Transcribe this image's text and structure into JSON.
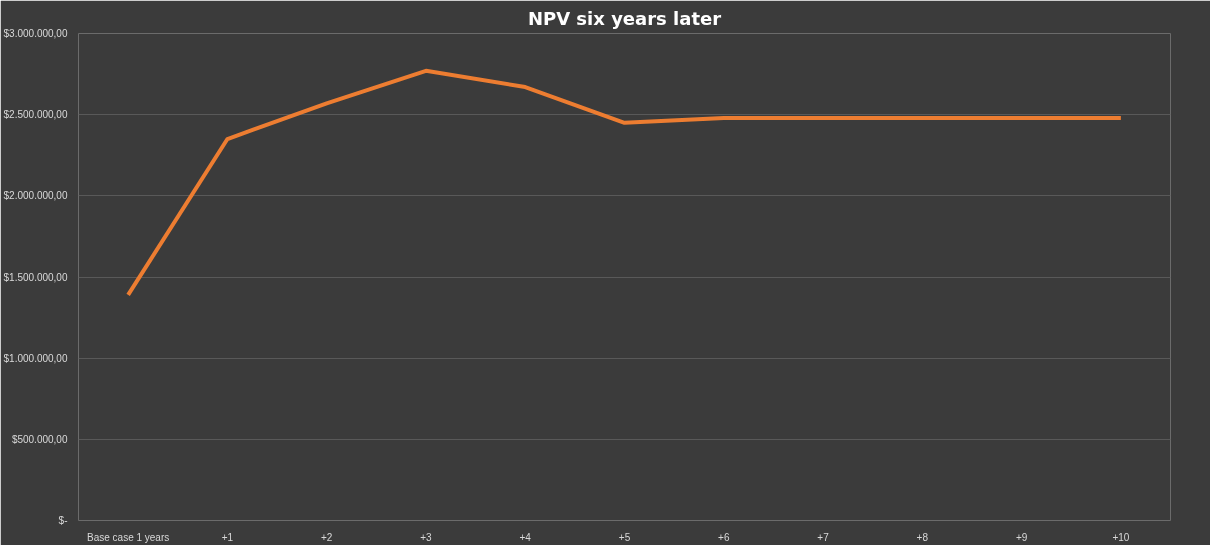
{
  "chart_data": {
    "type": "line",
    "title": "NPV six years later",
    "categories": [
      "Base case 1 years",
      "+1",
      "+2",
      "+3",
      "+4",
      "+5",
      "+6",
      "+7",
      "+8",
      "+9",
      "+10"
    ],
    "series": [
      {
        "color": "#ed7d31",
        "values": [
          1390000,
          2350000,
          2570000,
          2770000,
          2670000,
          2450000,
          2480000,
          2480000,
          2480000,
          2480000,
          2480000
        ]
      }
    ],
    "ylim": [
      0,
      3000000
    ],
    "yticks": [
      {
        "value": 0,
        "label": "$-"
      },
      {
        "value": 500000,
        "label": "$500.000,00"
      },
      {
        "value": 1000000,
        "label": "$1.000.000,00"
      },
      {
        "value": 1500000,
        "label": "$1.500.000,00"
      },
      {
        "value": 2000000,
        "label": "$2.000.000,00"
      },
      {
        "value": 2500000,
        "label": "$2.500.000,00"
      },
      {
        "value": 3000000,
        "label": "$3.000.000,00"
      }
    ],
    "grid": "y",
    "marker": "none",
    "line_style": "solid"
  }
}
